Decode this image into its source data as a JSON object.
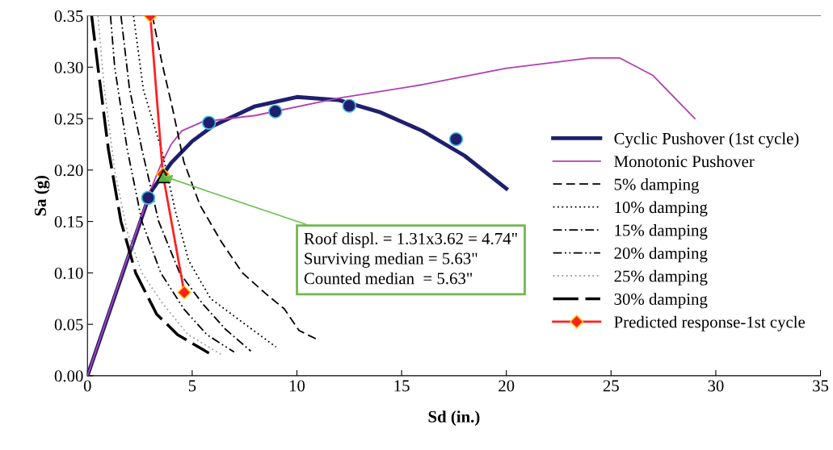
{
  "chart_data": {
    "type": "line",
    "xlabel": "Sd (in.)",
    "ylabel": "Sa (g)",
    "xlim": [
      0,
      35
    ],
    "xticks": [
      0,
      5,
      10,
      15,
      20,
      25,
      30,
      35
    ],
    "ylim": [
      0,
      0.35
    ],
    "yticks": [
      {
        "value": 0,
        "label": "0.00"
      },
      {
        "value": 0.05,
        "label": "0.05"
      },
      {
        "value": 0.1,
        "label": "0.10"
      },
      {
        "value": 0.15,
        "label": "0.15"
      },
      {
        "value": 0.2,
        "label": "0.20"
      },
      {
        "value": 0.25,
        "label": "0.25"
      },
      {
        "value": 0.3,
        "label": "0.30"
      },
      {
        "value": 0.35,
        "label": "0.35"
      }
    ],
    "grid": false,
    "legend": "right",
    "series": [
      {
        "name": "Cyclic Pushover (1st cycle)",
        "color": "#1f1f6e",
        "line_style": "solid",
        "marker": "none",
        "x": [
          0,
          3,
          4,
          5,
          6,
          8,
          10,
          12,
          14,
          16,
          18,
          20
        ],
        "values": [
          0,
          0.178,
          0.207,
          0.228,
          0.243,
          0.262,
          0.271,
          0.268,
          0.256,
          0.238,
          0.214,
          0.182
        ]
      },
      {
        "name": "Monotonic Pushover",
        "color": "#b040b0",
        "line_style": "solid",
        "marker": "none",
        "x": [
          0,
          3,
          3.5,
          4,
          4.5,
          5.5,
          8,
          12,
          16,
          20,
          24,
          25.4,
          27,
          29
        ],
        "values": [
          0,
          0.18,
          0.205,
          0.225,
          0.238,
          0.247,
          0.253,
          0.27,
          0.283,
          0.299,
          0.309,
          0.309,
          0.292,
          0.25
        ]
      },
      {
        "name": "5% damping",
        "color": "#000000",
        "line_style": "dashed",
        "marker": "none",
        "x": [
          3.1,
          3.56,
          4.06,
          4.6,
          5.37,
          6.4,
          7.4,
          8.5,
          9.4,
          10.1,
          10.9
        ],
        "values": [
          0.35,
          0.304,
          0.26,
          0.208,
          0.166,
          0.13,
          0.1,
          0.08,
          0.065,
          0.044,
          0.036
        ]
      },
      {
        "name": "10% damping",
        "color": "#000000",
        "line_style": "dotted",
        "marker": "none",
        "x": [
          2.2,
          2.67,
          3.56,
          4.2,
          4.83,
          5.88,
          7.4,
          9.0
        ],
        "values": [
          0.35,
          0.278,
          0.218,
          0.16,
          0.112,
          0.075,
          0.052,
          0.028
        ]
      },
      {
        "name": "15% damping",
        "color": "#000000",
        "line_style": "dashdot",
        "marker": "none",
        "x": [
          1.6,
          2.0,
          2.6,
          3.4,
          4.4,
          5.5,
          6.6,
          7.8
        ],
        "values": [
          0.35,
          0.28,
          0.22,
          0.15,
          0.1,
          0.07,
          0.045,
          0.024
        ]
      },
      {
        "name": "20% damping",
        "color": "#000000",
        "line_style": "dashdotdot",
        "marker": "none",
        "x": [
          1.1,
          1.3,
          1.9,
          2.6,
          3.5,
          4.6,
          5.7,
          7.0
        ],
        "values": [
          0.35,
          0.3,
          0.22,
          0.15,
          0.1,
          0.065,
          0.04,
          0.023
        ]
      },
      {
        "name": "25% damping",
        "color": "#a0a0a0",
        "line_style": "dotted",
        "marker": "none",
        "x": [
          0.5,
          0.8,
          1.3,
          1.9,
          2.6,
          3.6,
          4.8,
          6.45
        ],
        "values": [
          0.35,
          0.28,
          0.2,
          0.14,
          0.1,
          0.07,
          0.04,
          0.02
        ]
      },
      {
        "name": "30% damping",
        "color": "#000000",
        "line_style": "longdash",
        "marker": "none",
        "x": [
          0.2,
          0.5,
          1.0,
          1.6,
          2.3,
          3.3,
          4.3,
          5.8
        ],
        "values": [
          0.35,
          0.3,
          0.22,
          0.15,
          0.1,
          0.06,
          0.04,
          0.022
        ]
      },
      {
        "name": "Predicted response-1st cycle",
        "color": "#ff2020",
        "line_style": "solid",
        "marker": "diamond",
        "x": [
          3.0,
          3.6,
          4.62
        ],
        "values": [
          0.35,
          0.196,
          0.081
        ]
      },
      {
        "type": "scatter",
        "color": "#1f1f6e",
        "marker": "circle",
        "x": [
          2.9,
          5.8,
          8.97,
          12.5,
          17.6
        ],
        "values": [
          0.173,
          0.246,
          0.257,
          0.2625,
          0.23
        ]
      },
      {
        "type": "scatter",
        "color": "#5cb040",
        "marker": "triangle",
        "x": [
          3.63
        ],
        "values": [
          0.194
        ]
      }
    ],
    "annotations": [
      {
        "text": "Roof displ. = 1.31x3.62 = 4.74\"\nSurviving median = 5.63\"\nCounted median  = 5.63\"",
        "x": 3.63,
        "y": 0.194
      }
    ]
  }
}
